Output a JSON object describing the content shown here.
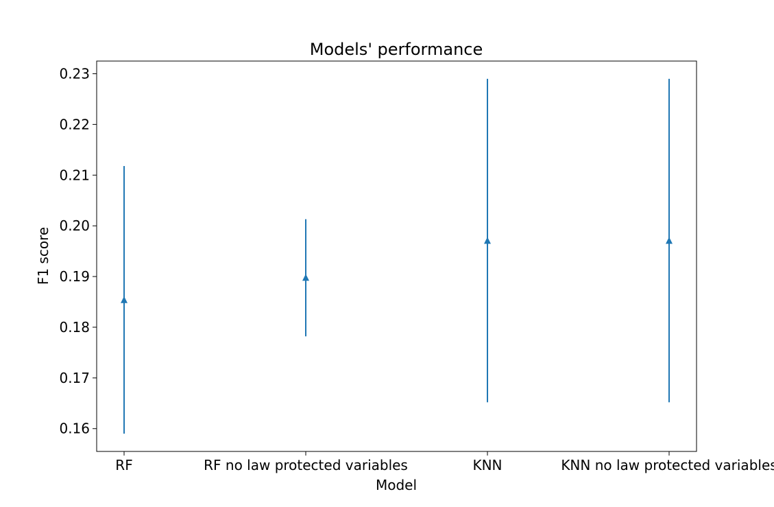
{
  "chart_data": {
    "type": "errorbar",
    "title": "Models' performance",
    "xlabel": "Model",
    "ylabel": "F1 score",
    "categories": [
      "RF",
      "RF no law protected variables",
      "KNN",
      "KNN no law protected variables"
    ],
    "series": [
      {
        "values": [
          0.1853,
          0.1897,
          0.197,
          0.197
        ],
        "lower": [
          0.159,
          0.1782,
          0.1652,
          0.1652
        ],
        "upper": [
          0.2118,
          0.2013,
          0.229,
          0.229
        ],
        "marker": "triangle-up"
      }
    ],
    "ylim": [
      0.1555,
      0.2325
    ],
    "yticks": [
      0.16,
      0.17,
      0.18,
      0.19,
      0.2,
      0.21,
      0.22,
      0.23
    ],
    "ytick_labels": [
      "0.16",
      "0.17",
      "0.18",
      "0.19",
      "0.20",
      "0.21",
      "0.22",
      "0.23"
    ],
    "grid": false,
    "legend": "none",
    "colors": {
      "series": "#1f77b4",
      "axes": "#000000",
      "background": "#ffffff"
    }
  }
}
